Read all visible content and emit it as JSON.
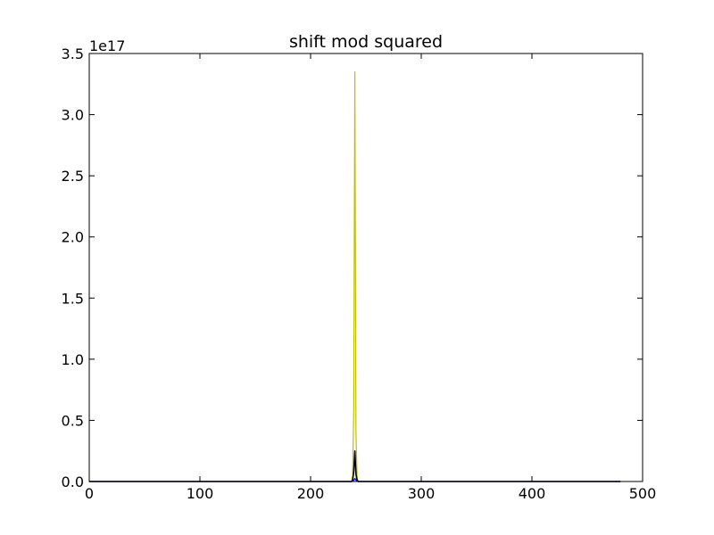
{
  "chart_data": {
    "type": "line",
    "title": "shift mod squared",
    "xlabel": "",
    "ylabel": "",
    "y_offset_label": "1e17",
    "xlim": [
      0,
      500
    ],
    "ylim": [
      0,
      3.5
    ],
    "x_ticks": [
      0,
      100,
      200,
      300,
      400,
      500
    ],
    "x_tick_labels": [
      "0",
      "100",
      "200",
      "300",
      "400",
      "500"
    ],
    "y_ticks": [
      0,
      0.5,
      1.0,
      1.5,
      2.0,
      2.5,
      3.0,
      3.5
    ],
    "y_tick_labels": [
      "0.0",
      "0.5",
      "1.0",
      "1.5",
      "2.0",
      "2.5",
      "3.0",
      "3.5"
    ],
    "grid": false,
    "legend": "none",
    "series": [
      {
        "color": "#bfbf00",
        "x": [
          0,
          236,
          237,
          238,
          239,
          240,
          241,
          242,
          243,
          244,
          480
        ],
        "y": [
          0,
          0,
          0,
          0.05,
          0.6,
          3.35,
          0.4,
          0.04,
          0,
          0,
          0
        ]
      },
      {
        "color": "#000000",
        "x": [
          0,
          236,
          237,
          238,
          239,
          240,
          241,
          242,
          243,
          244,
          480
        ],
        "y": [
          0,
          0,
          0,
          0.01,
          0.08,
          0.25,
          0.06,
          0.01,
          0,
          0,
          0
        ]
      },
      {
        "color": "#0000ff",
        "x": [
          0,
          237,
          238,
          239,
          240,
          241,
          242,
          243,
          480
        ],
        "y": [
          0,
          0,
          0.003,
          0.01,
          0.025,
          0.01,
          0.003,
          0,
          0
        ]
      }
    ]
  }
}
